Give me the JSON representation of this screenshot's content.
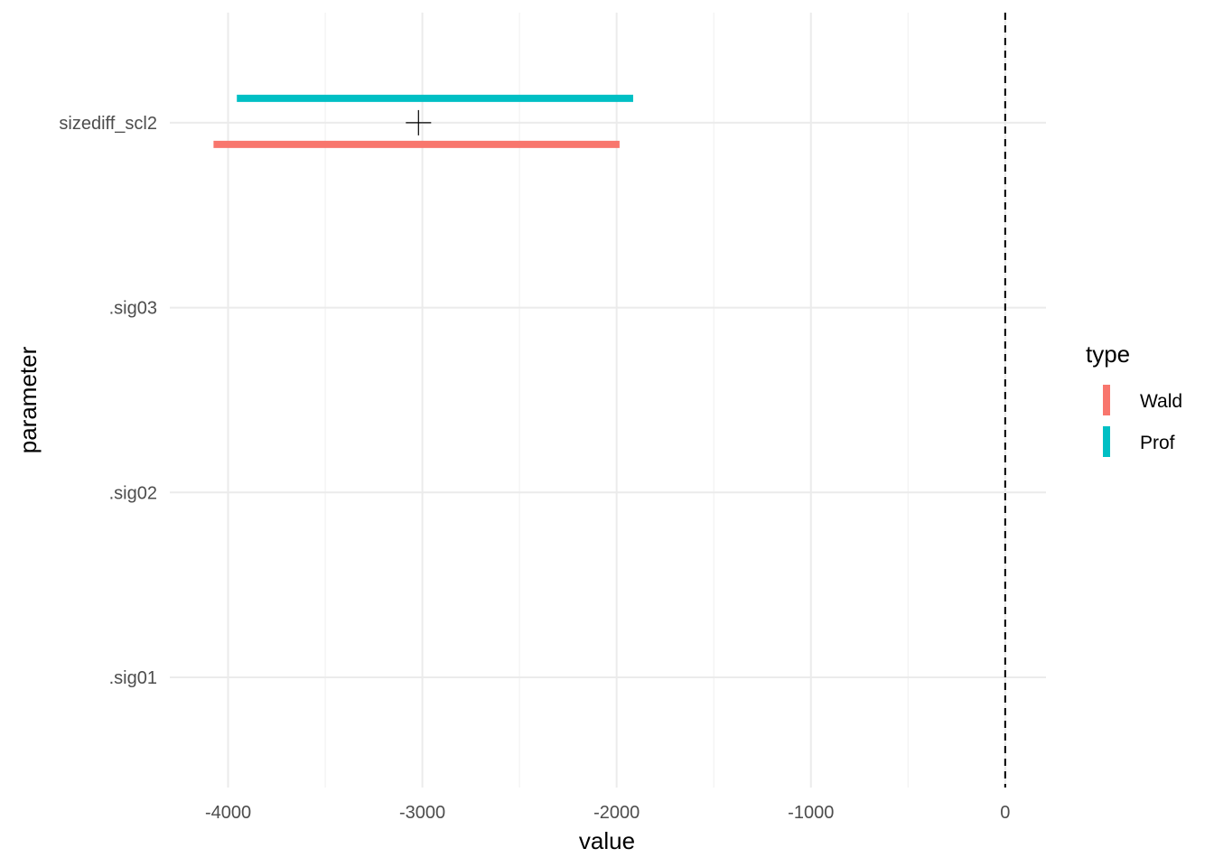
{
  "chart_data": {
    "type": "interval",
    "xlabel": "value",
    "ylabel": "parameter",
    "xlim": [
      -4300,
      210
    ],
    "x_ticks": [
      -4000,
      -3000,
      -2000,
      -1000,
      0
    ],
    "x_tick_labels": [
      "-4000",
      "-3000",
      "-2000",
      "-1000",
      "0"
    ],
    "x_minor_ticks": [
      -3500,
      -2500,
      -1500,
      -500
    ],
    "categories": [
      ".sig01",
      ".sig02",
      ".sig03",
      "sizediff_scl2"
    ],
    "reference_line": {
      "x": 0,
      "style": "dashed"
    },
    "point_estimate": {
      "category": "sizediff_scl2",
      "x": -3020,
      "shape": "plus"
    },
    "legend": {
      "title": "type",
      "position": "right"
    },
    "series": [
      {
        "name": "Wald",
        "color": "#F8766D",
        "intervals": [
          {
            "category": "sizediff_scl2",
            "low": -4075,
            "high": -1985
          }
        ]
      },
      {
        "name": "Prof",
        "color": "#00BFC4",
        "intervals": [
          {
            "category": "sizediff_scl2",
            "low": -3955,
            "high": -1915
          }
        ]
      }
    ],
    "grid": true
  }
}
